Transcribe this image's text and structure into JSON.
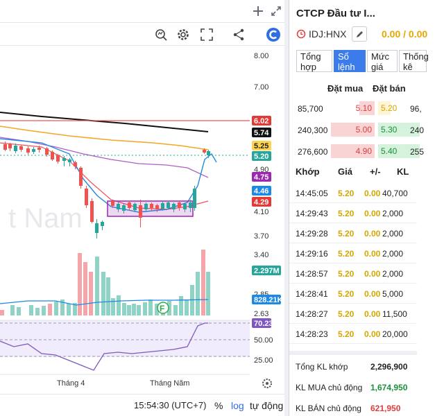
{
  "chart": {
    "watermark": "t Nam",
    "price_axis": [
      "8.00",
      "7.00",
      "6.02",
      "5.74",
      "5.25",
      "5.20",
      "4.90",
      "4.75",
      "4.46",
      "4.29",
      "4.10",
      "3.70",
      "3.40",
      "2.297M",
      "2.85",
      "828.21K",
      "2.63",
      "70.23",
      "50.00",
      "25.00"
    ],
    "price_scale": [
      8.0,
      7.0,
      4.9,
      4.1,
      3.7,
      3.4
    ],
    "badges": [
      {
        "text": "6.02",
        "bg": "#e53935",
        "fg": "#ffffff"
      },
      {
        "text": "5.74",
        "bg": "#111111",
        "fg": "#ffffff"
      },
      {
        "text": "5.25",
        "bg": "#ffd54f",
        "fg": "#222222"
      },
      {
        "text": "5.20",
        "bg": "#26a69a",
        "fg": "#ffffff"
      },
      {
        "text": "4.75",
        "bg": "#9c27b0",
        "fg": "#ffffff"
      },
      {
        "text": "4.46",
        "bg": "#1e88e5",
        "fg": "#ffffff"
      },
      {
        "text": "4.29",
        "bg": "#e53935",
        "fg": "#ffffff"
      },
      {
        "text": "2.297M",
        "bg": "#26a69a",
        "fg": "#ffffff"
      },
      {
        "text": "828.21K",
        "bg": "#1e88e5",
        "fg": "#ffffff"
      },
      {
        "text": "70.23",
        "bg": "#7e57c2",
        "fg": "#ffffff"
      }
    ],
    "rsi_levels": [
      "50.00",
      "25.00"
    ],
    "time_labels": [
      "Tháng 4",
      "Tháng Năm"
    ],
    "event_marker": "F",
    "colors": {
      "up": "#26a69a",
      "down": "#ef5350",
      "ma_black": "#111111",
      "ma_yellow": "#f5a623",
      "ma_purple": "#b05cc4",
      "ma_red": "#ef5350",
      "ma_blue": "#1e88e5",
      "box": "#9c27b0",
      "rsi": "#7e57c2"
    }
  },
  "toolbar": {
    "icons": [
      "add-icon",
      "expand-icon",
      "indicator-icon",
      "settings-icon",
      "fullscreen-icon",
      "share-icon",
      "brand-logo-icon"
    ]
  },
  "footer": {
    "time": "15:54:30 (UTC+7)",
    "percent": "%",
    "log": "log",
    "auto": "tự động"
  },
  "stock": {
    "title": "CTCP Đầu tư I...",
    "code": "IDJ:HNX",
    "price": "0.00 / 0.00"
  },
  "tabs": [
    {
      "label": "Tổng hợp",
      "active": false
    },
    {
      "label": "Sổ lệnh",
      "active": true
    },
    {
      "label": "Mức giá",
      "active": false
    },
    {
      "label": "Thống kê",
      "active": false
    }
  ],
  "orderbook": {
    "headers": {
      "buy": "Đặt mua",
      "sell": "Đặt bán"
    },
    "rows": [
      {
        "buy_vol": "85,700",
        "buy_price": "5.10",
        "sell_price": "5.20",
        "sell_vol": "96,",
        "buy_level": 0.35,
        "sell_level": 0.3,
        "sell_color": "#d4a600",
        "sell_bar": "#fdf5d3"
      },
      {
        "buy_vol": "240,300",
        "buy_price": "5.00",
        "sell_price": "5.30",
        "sell_vol": "240",
        "buy_level": 1.0,
        "sell_level": 1.0,
        "sell_color": "#1b8f3a",
        "sell_bar": "#d5f2dc"
      },
      {
        "buy_vol": "276,600",
        "buy_price": "4.90",
        "sell_price": "5.40",
        "sell_vol": "255",
        "buy_level": 1.0,
        "sell_level": 1.0,
        "sell_color": "#1b8f3a",
        "sell_bar": "#d5f2dc"
      }
    ]
  },
  "trades": {
    "headers": {
      "time": "Khớp",
      "price": "Giá",
      "change": "+/-",
      "vol": "KL"
    },
    "rows": [
      {
        "time": "14:45:05",
        "price": "5.20",
        "change": "0.00",
        "vol": "40,700"
      },
      {
        "time": "14:29:43",
        "price": "5.20",
        "change": "0.00",
        "vol": "2,000"
      },
      {
        "time": "14:29:28",
        "price": "5.20",
        "change": "0.00",
        "vol": "2,000"
      },
      {
        "time": "14:29:16",
        "price": "5.20",
        "change": "0.00",
        "vol": "2,000"
      },
      {
        "time": "14:28:57",
        "price": "5.20",
        "change": "0.00",
        "vol": "2,000"
      },
      {
        "time": "14:28:41",
        "price": "5.20",
        "change": "0.00",
        "vol": "5,000"
      },
      {
        "time": "14:28:27",
        "price": "5.20",
        "change": "0.00",
        "vol": "11,500"
      },
      {
        "time": "14:28:23",
        "price": "5.20",
        "change": "0.00",
        "vol": "20,000"
      }
    ]
  },
  "summary": {
    "total_label": "Tổng KL khớp",
    "total_value": "2,296,900",
    "buy_label": "KL MUA chủ động",
    "buy_value": "1,674,950",
    "sell_label": "KL BÁN chủ động",
    "sell_value": "621,950"
  }
}
